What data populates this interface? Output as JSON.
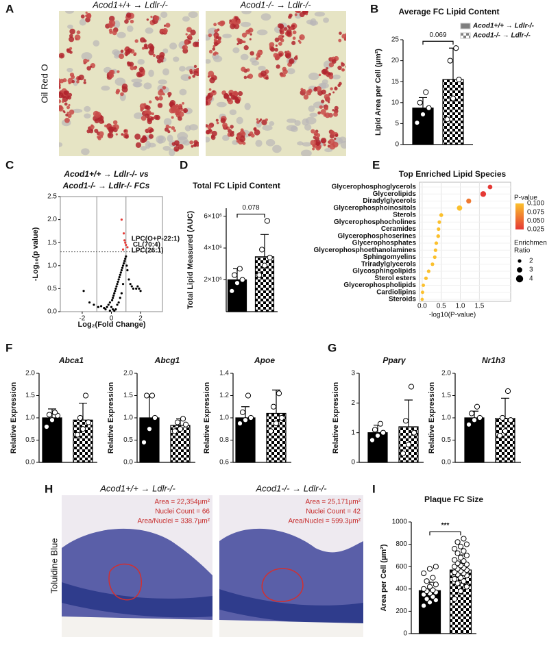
{
  "figure": {
    "letters": [
      "A",
      "B",
      "C",
      "D",
      "E",
      "F",
      "G",
      "H",
      "I"
    ],
    "oil_red": {
      "side_label": "Oil Red O",
      "titles": [
        "Acod1+/+ → Ldlr-/-",
        "Acod1-/- → Ldlr-/-"
      ]
    },
    "toluidine": {
      "side_label": "Toluidine Blue",
      "titles": [
        "Acod1+/+ → Ldlr-/-",
        "Acod1-/- → Ldlr-/-"
      ],
      "annotations": [
        [
          "Area = 22,354µm²",
          "Nuclei Count = 66",
          "Area/Nuclei = 338.7µm²"
        ],
        [
          "Area = 25,171µm²",
          "Nuclei Count = 42",
          "Area/Nuclei = 599.3µm²"
        ]
      ]
    }
  },
  "chart_data": [
    {
      "type": "bar",
      "title": "Average FC Lipid Content",
      "y_label": "Lipid Area per Cell (µm²)",
      "values": [
        8.7,
        15.5
      ],
      "errors": [
        2.5,
        7.5
      ],
      "points": [
        [
          5.2,
          7.2,
          8.7,
          10,
          12.5
        ],
        [
          6,
          11,
          15.5,
          20,
          23
        ]
      ],
      "patterns": [
        "solid",
        "checker"
      ],
      "color": "#000000",
      "ylim": [
        0,
        25
      ],
      "yticks": [
        0,
        5,
        10,
        15,
        20,
        25
      ],
      "annotation": "0.069",
      "legend": {
        "corner": "upper right",
        "entries": [
          "Acod1+/+ → Ldlr-/-",
          "Acod1-/- → Ldlr-/-"
        ]
      }
    },
    {
      "type": "scatter",
      "title": [
        "Acod1+/+ → Ldlr-/- vs",
        "Acod1-/- → Ldlr-/- FCs"
      ],
      "x_label": "Log₂(Fold Change)",
      "y_label": "-Log₁₀(p value)",
      "series": [
        {
          "color": "#000000",
          "x": [
            -1.9,
            -1.5,
            -1.2,
            -0.9,
            -0.7,
            -0.5,
            -0.4,
            -0.3,
            -0.2,
            -0.1,
            0,
            0.05,
            0.1,
            0.15,
            0.2,
            0.25,
            0.3,
            0.35,
            0.4,
            0.45,
            0.5,
            0.55,
            0.6,
            0.65,
            0.7,
            0.75,
            0.8,
            0.85,
            0.9,
            0.95,
            1.0,
            1.05,
            1.1,
            1.2,
            1.3,
            1.4,
            1.5,
            1.7,
            1.8,
            1.9,
            2.0,
            0.3,
            0.5,
            0.7,
            0.2,
            0.6,
            0.8,
            0.4,
            -0.1,
            0.1
          ],
          "values": [
            0.45,
            0.2,
            0.15,
            0.1,
            0.12,
            0.08,
            0.05,
            0.1,
            0.15,
            0.2,
            0.1,
            0.25,
            0.3,
            0.35,
            0.4,
            0.45,
            0.5,
            0.55,
            0.6,
            0.65,
            0.7,
            0.75,
            0.8,
            0.85,
            0.9,
            0.95,
            1.0,
            1.05,
            1.1,
            1.15,
            1.2,
            1.0,
            0.9,
            0.7,
            0.6,
            0.55,
            0.5,
            0.5,
            0.55,
            0.5,
            0.45,
            0.05,
            0.2,
            0.4,
            0.02,
            0.3,
            0.6,
            0.15,
            0.02,
            0.05
          ]
        },
        {
          "color": "#e53935",
          "x": [
            0.7,
            0.85,
            0.9,
            1.0,
            1.1,
            0.8,
            0.95
          ],
          "values": [
            2.0,
            1.7,
            1.55,
            1.45,
            1.4,
            1.35,
            1.5
          ]
        }
      ],
      "point_labels": [
        {
          "text": "LPC(O+P-22:1)",
          "x": 1.0,
          "y": 1.58
        },
        {
          "text": "CL(70:4)",
          "x": 1.1,
          "y": 1.45
        },
        {
          "text": "LPC(26:1)",
          "x": 1.0,
          "y": 1.33
        }
      ],
      "vlines": [
        -1,
        1
      ],
      "hline": 1.3,
      "xlim": [
        -3.5,
        3.5
      ],
      "xticks": [
        -2,
        0,
        2
      ],
      "ylim": [
        0,
        2.5
      ],
      "yticks": [
        {
          "value": 0,
          "label": "0.0"
        },
        0.5,
        {
          "value": 1,
          "label": "1.0"
        },
        1.5,
        {
          "value": 2,
          "label": "2.0"
        },
        2.5
      ]
    },
    {
      "type": "bar",
      "title": "Total FC Lipid Content",
      "y_label": "Total Lipid Measured (AUC)",
      "values": [
        2000000,
        3450000
      ],
      "errors": [
        700000,
        1400000
      ],
      "points": [
        [
          1300000,
          1800000,
          2000000,
          2300000,
          2700000
        ],
        [
          2300000,
          2900000,
          3400000,
          3900000,
          5700000
        ]
      ],
      "patterns": [
        "solid",
        "checker"
      ],
      "color": "#000000",
      "ylim": [
        0,
        6500000
      ],
      "yticks": [
        {
          "value": 2000000,
          "label": "2×10⁶"
        },
        {
          "value": 4000000,
          "label": "4×10⁶"
        },
        {
          "value": 6000000,
          "label": "6×10⁶"
        }
      ],
      "annotation": "0.078"
    },
    {
      "type": "dot",
      "title": "Top Enriched Lipid Species",
      "x_label": "-log10(P-value)",
      "categories": [
        "Glycerophosphoglycerols",
        "Glycerolipids",
        "Diradylglycerols",
        "Glycerophosphoinositols",
        "Sterols",
        "Glycerophosphocholines",
        "Ceramides",
        "Glycerophosphoserines",
        "Glycerophosphates",
        "Glycerophosphoethanolamines",
        "Sphingomyelins",
        "Triradylglycerols",
        "Glycosphingolipids",
        "Sterol esters",
        "Glycerophospholipids",
        "Cardiolipins",
        "Steroids"
      ],
      "values": [
        1.78,
        1.6,
        1.22,
        0.98,
        0.5,
        0.45,
        0.43,
        0.42,
        0.37,
        0.35,
        0.33,
        0.27,
        0.17,
        0.1,
        0.03,
        0.01,
        0.0
      ],
      "sizes": [
        2.6,
        3.2,
        2.8,
        3.0,
        2.2,
        2.0,
        2.0,
        2.1,
        2.0,
        2.0,
        2.0,
        2.0,
        2.0,
        2.0,
        1.9,
        1.9,
        1.8
      ],
      "xlim": [
        -0.07,
        2.32
      ],
      "xticks": [
        {
          "value": 0,
          "label": "0.0"
        },
        0.5,
        {
          "value": 1,
          "label": "1.0"
        },
        1.5
      ],
      "color_scale": {
        "title": "P-value",
        "ticks": [
          {
            "value": 0.1,
            "label": "0.100"
          },
          0.075,
          {
            "value": 0.05,
            "label": "0.050"
          },
          0.025
        ],
        "colors": [
          "#fbc02d",
          "#e53935"
        ]
      },
      "size_legend": {
        "title": [
          "Enrichment",
          "Ratio"
        ],
        "values": [
          2,
          3,
          4
        ]
      }
    },
    {
      "type": "bar",
      "title": "Abca1",
      "y_label": "Relative Expression",
      "values": [
        1.0,
        0.95
      ],
      "errors": [
        0.2,
        0.38
      ],
      "points": [
        [
          0.8,
          0.95,
          1.05,
          1.07,
          1.12
        ],
        [
          0.62,
          0.75,
          0.9,
          1.0,
          1.5
        ]
      ],
      "patterns": [
        "solid",
        "checker"
      ],
      "color": "#000000",
      "ylim": [
        0,
        2
      ],
      "yticks": [
        {
          "value": 0,
          "label": "0.0"
        },
        0.5,
        {
          "value": 1,
          "label": "1.0"
        },
        1.5,
        {
          "value": 2,
          "label": "2.0"
        }
      ]
    },
    {
      "type": "bar",
      "title": "Abcg1",
      "y_label": "Relative Expression",
      "values": [
        1.0,
        0.83
      ],
      "errors": [
        0.5,
        0.15
      ],
      "points": [
        [
          0.45,
          0.75,
          1.0,
          1.5,
          1.5
        ],
        [
          0.7,
          0.75,
          0.85,
          0.9,
          0.98
        ]
      ],
      "patterns": [
        "solid",
        "checker"
      ],
      "color": "#000000",
      "ylim": [
        0,
        2
      ],
      "yticks": [
        {
          "value": 0,
          "label": "0.0"
        },
        0.5,
        {
          "value": 1,
          "label": "1.0"
        },
        1.5,
        {
          "value": 2,
          "label": "2.0"
        }
      ]
    },
    {
      "type": "bar",
      "title": "Apoe",
      "y_label": "Relative Expression",
      "values": [
        1.0,
        1.04
      ],
      "errors": [
        0.1,
        0.21
      ],
      "points": [
        [
          0.95,
          0.98,
          1.0,
          1.05,
          1.2
        ],
        [
          0.88,
          0.95,
          1.0,
          1.1,
          1.22
        ]
      ],
      "patterns": [
        "solid",
        "checker"
      ],
      "color": "#000000",
      "ylim": [
        0.6,
        1.4
      ],
      "yticks": [
        0.6,
        0.8,
        {
          "value": 1,
          "label": "1.0"
        },
        1.2,
        1.4
      ]
    },
    {
      "type": "bar",
      "title": "Pparγ",
      "y_label": "Relative Expression",
      "values": [
        1.0,
        1.2
      ],
      "errors": [
        0.25,
        0.9
      ],
      "points": [
        [
          0.75,
          0.9,
          1.0,
          1.1,
          1.3
        ],
        [
          0.3,
          0.6,
          1.0,
          1.4,
          2.55
        ]
      ],
      "patterns": [
        "solid",
        "checker"
      ],
      "color": "#000000",
      "ylim": [
        0,
        3
      ],
      "yticks": [
        0,
        1,
        2,
        3
      ]
    },
    {
      "type": "bar",
      "title": "Nr1h3",
      "y_label": "Relative Expression",
      "values": [
        1.0,
        0.99
      ],
      "errors": [
        0.15,
        0.45
      ],
      "points": [
        [
          0.85,
          0.95,
          1.0,
          1.1,
          1.25
        ],
        [
          0.6,
          0.7,
          0.95,
          1.0,
          1.6
        ]
      ],
      "patterns": [
        "solid",
        "checker"
      ],
      "color": "#000000",
      "ylim": [
        0,
        2
      ],
      "yticks": [
        {
          "value": 0,
          "label": "0.0"
        },
        0.5,
        {
          "value": 1,
          "label": "1.0"
        },
        1.5,
        {
          "value": 2,
          "label": "2.0"
        }
      ]
    },
    {
      "type": "bar",
      "title": "Plaque FC Size",
      "y_label": "Area per Cell (µm²)",
      "values": [
        385,
        570
      ],
      "errors": [
        75,
        135
      ],
      "points": [
        [
          250,
          280,
          300,
          310,
          330,
          350,
          360,
          370,
          380,
          390,
          400,
          420,
          440,
          470,
          500,
          540,
          580,
          600
        ],
        [
          310,
          380,
          420,
          450,
          470,
          490,
          500,
          520,
          530,
          540,
          550,
          560,
          570,
          580,
          590,
          600,
          610,
          620,
          630,
          650,
          660,
          680,
          700,
          720,
          740,
          760,
          780,
          800,
          820,
          850
        ]
      ],
      "patterns": [
        "solid",
        "checker"
      ],
      "color": "#000000",
      "ylim": [
        0,
        1000
      ],
      "yticks": [
        0,
        200,
        400,
        600,
        800,
        1000
      ],
      "annotation": "***"
    }
  ]
}
